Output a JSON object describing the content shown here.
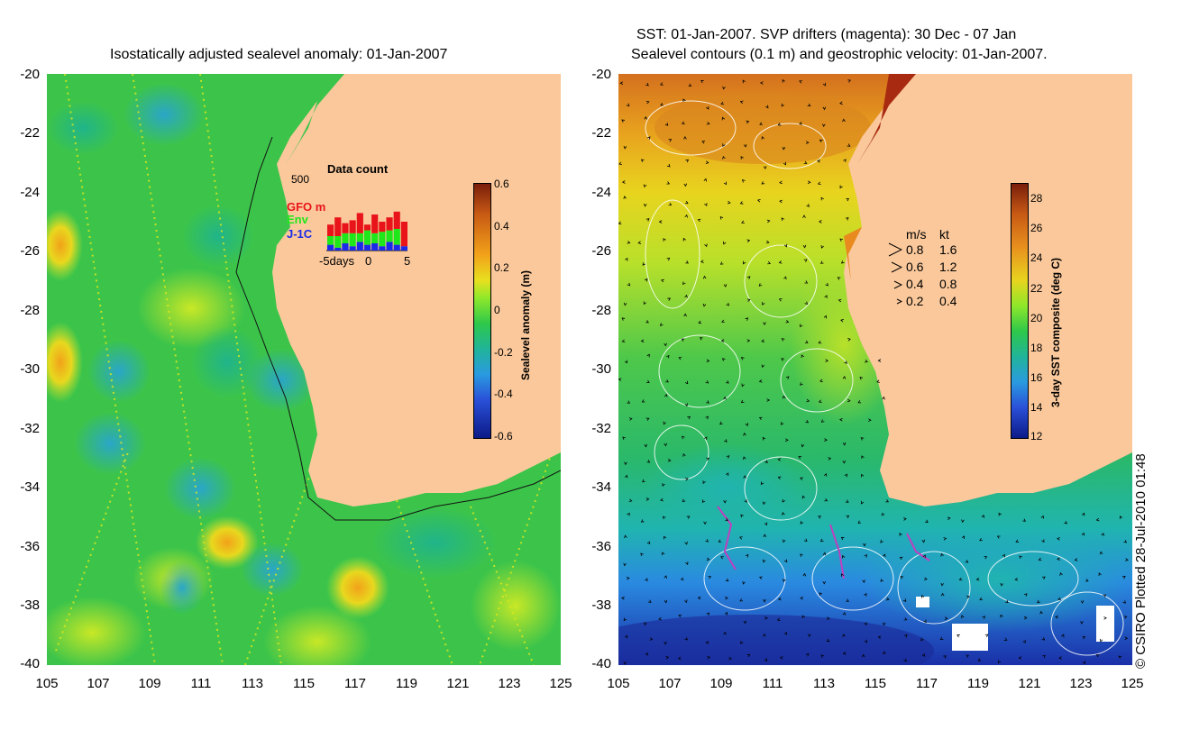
{
  "left_map": {
    "title": "Isostatically adjusted sealevel anomaly: 01-Jan-2007",
    "y_ticks": [
      "-20",
      "-22",
      "-24",
      "-26",
      "-28",
      "-30",
      "-32",
      "-34",
      "-36",
      "-38",
      "-40"
    ],
    "x_ticks": [
      "105",
      "107",
      "109",
      "111",
      "113",
      "115",
      "117",
      "119",
      "121",
      "123",
      "125"
    ],
    "colorbar": {
      "label": "Sealevel anomaly (m)",
      "ticks": [
        "0.6",
        "0.4",
        "0.2",
        "0",
        "-0.2",
        "-0.4",
        "-0.6"
      ],
      "range": [
        -0.6,
        0.6
      ]
    },
    "inset": {
      "title": "Data count",
      "ymax_label": "500",
      "x_label_left": "-5days",
      "x_label_mid": "0",
      "x_label_right": "5",
      "legend": [
        "GFO mm",
        "Env",
        "J-1C"
      ],
      "legend_colors": [
        "#e8141a",
        "#1ee81a",
        "#1a2ae8"
      ],
      "days": [
        -6,
        -5,
        -4,
        -3,
        -2,
        -1,
        0,
        1,
        2,
        3,
        4
      ],
      "counts_gfo": [
        180,
        230,
        190,
        210,
        260,
        180,
        250,
        200,
        230,
        270,
        200
      ],
      "counts_env": [
        60,
        80,
        70,
        90,
        60,
        100,
        70,
        100,
        80,
        110,
        0
      ],
      "counts_j1c": [
        40,
        20,
        50,
        30,
        60,
        40,
        50,
        30,
        60,
        40,
        30
      ]
    }
  },
  "right_map": {
    "title_line1": "SST: 01-Jan-2007. SVP drifters (magenta): 30 Dec - 07 Jan",
    "title_line2": "Sealevel contours (0.1 m) and geostrophic velocity: 01-Jan-2007.",
    "y_ticks": [
      "-20",
      "-22",
      "-24",
      "-26",
      "-28",
      "-30",
      "-32",
      "-34",
      "-36",
      "-38",
      "-40"
    ],
    "x_ticks": [
      "105",
      "107",
      "109",
      "111",
      "113",
      "115",
      "117",
      "119",
      "121",
      "123",
      "125"
    ],
    "colorbar": {
      "label": "3-day SST composite (deg C)",
      "ticks": [
        "28",
        "26",
        "24",
        "22",
        "20",
        "18",
        "16",
        "14",
        "12"
      ],
      "range": [
        12,
        29
      ]
    },
    "velocity_legend": {
      "header_ms": "m/s",
      "header_kt": "kt",
      "rows": [
        {
          "ms": "0.8",
          "kt": "1.6"
        },
        {
          "ms": "0.6",
          "kt": "1.2"
        },
        {
          "ms": "0.4",
          "kt": "0.8"
        },
        {
          "ms": "0.2",
          "kt": "0.4"
        }
      ]
    }
  },
  "credit": "© CSIRO Plotted 28-Jul-2010 01:48",
  "colors": {
    "land": "#fac89b",
    "ocean_green": "#2fc24a",
    "sst_warm": "#c0561e",
    "sst_cold": "#1a3ab0"
  }
}
